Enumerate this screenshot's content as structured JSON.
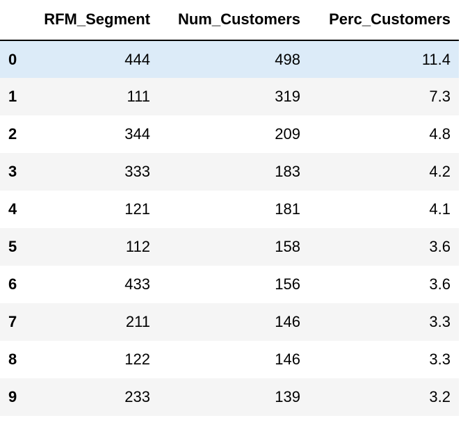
{
  "table": {
    "index_header": "",
    "columns": [
      "RFM_Segment",
      "Num_Customers",
      "Perc_Customers"
    ],
    "hovered_row": 0,
    "colors": {
      "hover_row": "#dcebf8",
      "striped_row": "#f5f5f5"
    },
    "rows": [
      {
        "index": "0",
        "values": [
          "444",
          "498",
          "11.4"
        ]
      },
      {
        "index": "1",
        "values": [
          "111",
          "319",
          "7.3"
        ]
      },
      {
        "index": "2",
        "values": [
          "344",
          "209",
          "4.8"
        ]
      },
      {
        "index": "3",
        "values": [
          "333",
          "183",
          "4.2"
        ]
      },
      {
        "index": "4",
        "values": [
          "121",
          "181",
          "4.1"
        ]
      },
      {
        "index": "5",
        "values": [
          "112",
          "158",
          "3.6"
        ]
      },
      {
        "index": "6",
        "values": [
          "433",
          "156",
          "3.6"
        ]
      },
      {
        "index": "7",
        "values": [
          "211",
          "146",
          "3.3"
        ]
      },
      {
        "index": "8",
        "values": [
          "122",
          "146",
          "3.3"
        ]
      },
      {
        "index": "9",
        "values": [
          "233",
          "139",
          "3.2"
        ]
      }
    ]
  }
}
